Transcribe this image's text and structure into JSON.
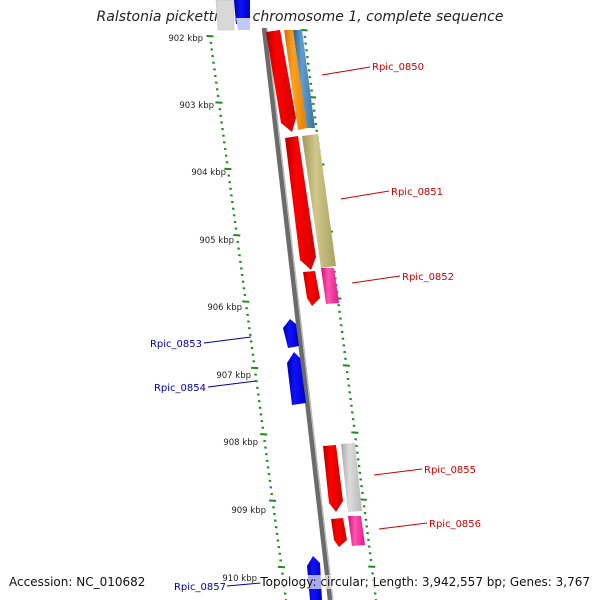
{
  "title": "Ralstonia pickettii 12J chromosome 1, complete sequence",
  "ticks": [
    "902 kbp",
    "903 kbp",
    "904 kbp",
    "905 kbp",
    "906 kbp",
    "907 kbp",
    "908 kbp",
    "909 kbp",
    "910 kbp"
  ],
  "genes": {
    "rpic_0850": "Rpic_0850",
    "rpic_0851": "Rpic_0851",
    "rpic_0852": "Rpic_0852",
    "rpic_0853": "Rpic_0853",
    "rpic_0854": "Rpic_0854",
    "rpic_0855": "Rpic_0855",
    "rpic_0856": "Rpic_0856",
    "rpic_0857": "Rpic_0857"
  },
  "footer": {
    "accession": "Accession: NC_010682",
    "summary": "Topology: circular; Length: 3,942,557 bp; Genes: 3,767"
  },
  "colors": {
    "forward_gene": "#ff0000",
    "reverse_gene": "#0000ff",
    "forward_label": "#cc0000",
    "reverse_label": "#0000aa",
    "backbone": "#808080",
    "tick_green": "#1f8a1f",
    "orange_gene": "#ff9900",
    "steelblue_gene": "#4682b4",
    "olive_gene": "#bdb76b",
    "pink_gene": "#ff1493",
    "grey_gene": "#c8c8c8"
  }
}
